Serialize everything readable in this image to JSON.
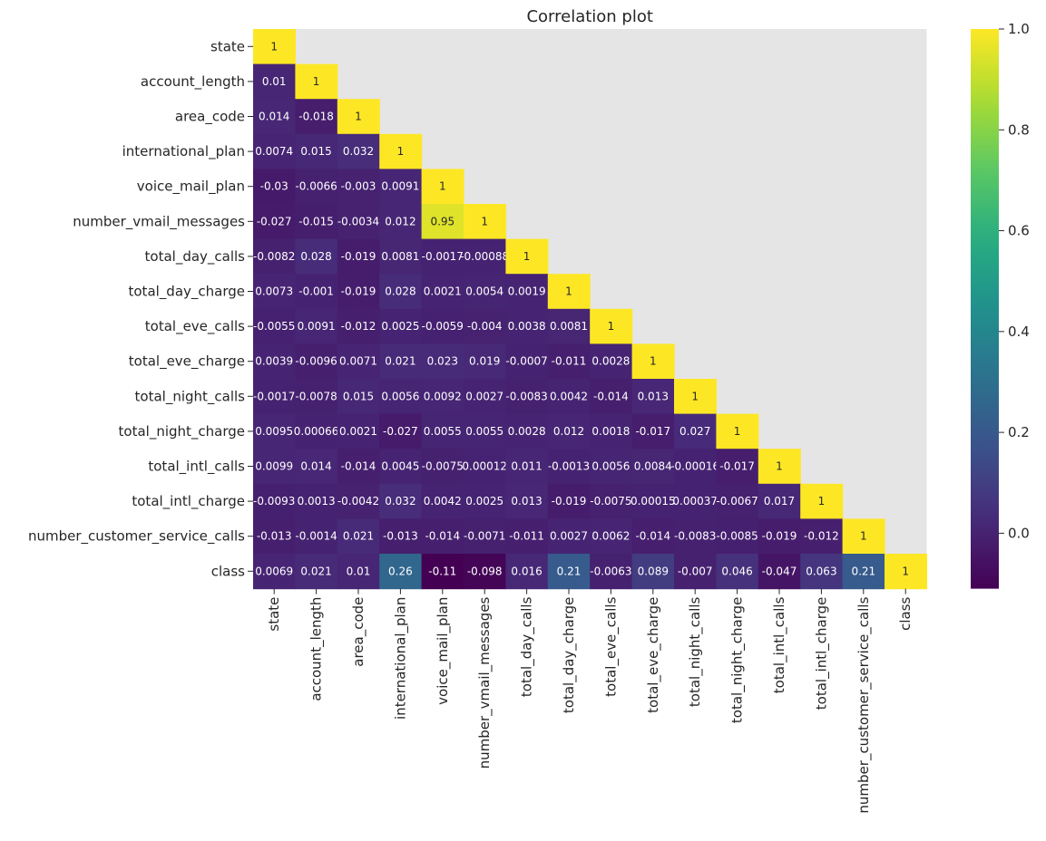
{
  "chart_data": {
    "type": "heatmap",
    "title": "Correlation plot",
    "labels": [
      "state",
      "account_length",
      "area_code",
      "international_plan",
      "voice_mail_plan",
      "number_vmail_messages",
      "total_day_calls",
      "total_day_charge",
      "total_eve_calls",
      "total_eve_charge",
      "total_night_calls",
      "total_night_charge",
      "total_intl_calls",
      "total_intl_charge",
      "number_customer_service_calls",
      "class"
    ],
    "rows": [
      [
        "1"
      ],
      [
        "0.01",
        "1"
      ],
      [
        "0.014",
        "-0.018",
        "1"
      ],
      [
        "0.0074",
        "0.015",
        "0.032",
        "1"
      ],
      [
        "-0.03",
        "-0.0066",
        "-0.003",
        "0.0091",
        "1"
      ],
      [
        "-0.027",
        "-0.015",
        "-0.0034",
        "0.012",
        "0.95",
        "1"
      ],
      [
        "-0.0082",
        "0.028",
        "-0.019",
        "0.0081",
        "-0.0017",
        "-0.00088",
        "1"
      ],
      [
        "0.0073",
        "-0.001",
        "-0.019",
        "0.028",
        "0.0021",
        "0.0054",
        "0.0019",
        "1"
      ],
      [
        "-0.0055",
        "0.0091",
        "-0.012",
        "0.0025",
        "-0.0059",
        "-0.004",
        "0.0038",
        "0.0081",
        "1"
      ],
      [
        "0.0039",
        "-0.0096",
        "0.0071",
        "0.021",
        "0.023",
        "0.019",
        "-0.0007",
        "-0.011",
        "0.0028",
        "1"
      ],
      [
        "-0.0017",
        "-0.0078",
        "0.015",
        "0.0056",
        "0.0092",
        "0.0027",
        "-0.0083",
        "0.0042",
        "-0.014",
        "0.013",
        "1"
      ],
      [
        "0.0095",
        "0.00066",
        "0.0021",
        "-0.027",
        "0.0055",
        "0.0055",
        "0.0028",
        "0.012",
        "0.0018",
        "-0.017",
        "0.027",
        "1"
      ],
      [
        "0.0099",
        "0.014",
        "-0.014",
        "0.0045",
        "-0.0075",
        "0.00012",
        "0.011",
        "-0.0013",
        "0.0056",
        "0.0084",
        "-0.00016",
        "-0.017",
        "1"
      ],
      [
        "-0.0093",
        "0.0013",
        "-0.0042",
        "0.032",
        "0.0042",
        "0.0025",
        "0.013",
        "-0.019",
        "-0.0075",
        "0.00015",
        "0.00037",
        "-0.0067",
        "0.017",
        "1"
      ],
      [
        "-0.013",
        "-0.0014",
        "0.021",
        "-0.013",
        "-0.014",
        "-0.0071",
        "-0.011",
        "0.0027",
        "0.0062",
        "-0.014",
        "-0.0083",
        "-0.0085",
        "-0.019",
        "-0.012",
        "1"
      ],
      [
        "0.0069",
        "0.021",
        "0.01",
        "0.26",
        "-0.11",
        "-0.098",
        "0.016",
        "0.21",
        "-0.0063",
        "0.089",
        "-0.007",
        "0.046",
        "-0.047",
        "0.063",
        "0.21",
        "1"
      ]
    ],
    "colorbar": {
      "min": -0.11,
      "max": 1.0,
      "ticks": [
        "0.0",
        "0.2",
        "0.4",
        "0.6",
        "0.8",
        "1.0"
      ],
      "colormap": "viridis"
    },
    "mask": "upper-triangle",
    "mask_color": "#e5e5e5"
  }
}
